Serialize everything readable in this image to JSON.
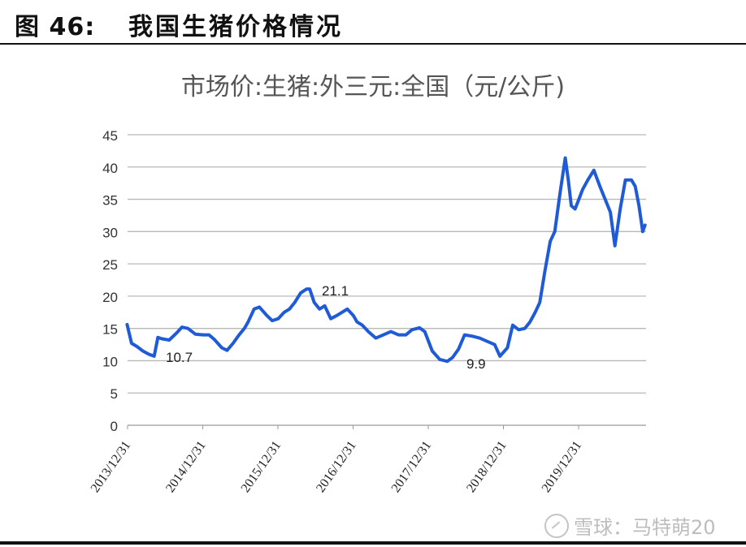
{
  "figure": {
    "label": "图 46:",
    "title": "我国生猪价格情况"
  },
  "watermark": {
    "icon": "xueqiu-logo-icon",
    "text": "雪球：马特萌20"
  },
  "chart_data": {
    "type": "line",
    "title": "市场价:生猪:外三元:全国（元/公斤)",
    "xlabel": "",
    "ylabel": "",
    "ylim": [
      0,
      45
    ],
    "yticks": [
      0,
      5,
      10,
      15,
      20,
      25,
      30,
      35,
      40,
      45
    ],
    "xticks": [
      "2013/12/31",
      "2014/12/31",
      "2015/12/31",
      "2016/12/31",
      "2017/12/31",
      "2018/12/31",
      "2019/12/31"
    ],
    "grid": "horizontal",
    "legend": "none",
    "line_color": "#1f5bd6",
    "annotations": [
      {
        "text": "10.7",
        "x": "2014-04",
        "y": 10.7
      },
      {
        "text": "21.1",
        "x": "2016-05",
        "y": 21.1
      },
      {
        "text": "9.9",
        "x": "2018-05",
        "y": 9.9
      }
    ],
    "series": [
      {
        "name": "市场价:生猪:外三元:全国",
        "x": [
          2013.99,
          2014.05,
          2014.12,
          2014.2,
          2014.28,
          2014.35,
          2014.4,
          2014.45,
          2014.55,
          2014.65,
          2014.72,
          2014.8,
          2014.9,
          2015.0,
          2015.08,
          2015.15,
          2015.25,
          2015.32,
          2015.4,
          2015.48,
          2015.55,
          2015.6,
          2015.68,
          2015.75,
          2015.85,
          2015.92,
          2016.0,
          2016.08,
          2016.15,
          2016.22,
          2016.3,
          2016.38,
          2016.42,
          2016.48,
          2016.55,
          2016.62,
          2016.7,
          2016.78,
          2016.85,
          2016.92,
          2017.0,
          2017.05,
          2017.12,
          2017.2,
          2017.3,
          2017.4,
          2017.5,
          2017.6,
          2017.7,
          2017.78,
          2017.88,
          2017.95,
          2018.05,
          2018.15,
          2018.25,
          2018.32,
          2018.4,
          2018.48,
          2018.58,
          2018.68,
          2018.78,
          2018.88,
          2018.95,
          2019.05,
          2019.12,
          2019.2,
          2019.28,
          2019.35,
          2019.42,
          2019.48,
          2019.55,
          2019.62,
          2019.68,
          2019.75,
          2019.82,
          2019.86,
          2019.9,
          2019.95,
          2020.0,
          2020.05,
          2020.12,
          2020.2,
          2020.28,
          2020.35,
          2020.42,
          2020.48,
          2020.55,
          2020.62,
          2020.7,
          2020.75,
          2020.8,
          2020.85,
          2020.88
        ],
        "values": [
          15.6,
          12.7,
          12.2,
          11.5,
          11.0,
          10.7,
          13.6,
          13.4,
          13.2,
          14.3,
          15.2,
          15.0,
          14.1,
          14.0,
          14.0,
          13.3,
          12.0,
          11.6,
          12.7,
          14.0,
          15.0,
          16.0,
          18.0,
          18.3,
          17.0,
          16.2,
          16.5,
          17.5,
          18.0,
          19.0,
          20.5,
          21.1,
          21.1,
          19.0,
          18.0,
          18.5,
          16.5,
          17.0,
          17.5,
          18.0,
          17.0,
          16.0,
          15.5,
          14.5,
          13.5,
          14.0,
          14.5,
          14.0,
          14.0,
          14.8,
          15.1,
          14.5,
          11.5,
          10.2,
          9.9,
          10.5,
          11.8,
          14.0,
          13.8,
          13.5,
          13.0,
          12.5,
          10.7,
          12.0,
          15.5,
          14.8,
          15.0,
          16.0,
          17.5,
          19.0,
          24.0,
          28.5,
          30.0,
          36.0,
          41.4,
          38.0,
          34.0,
          33.5,
          35.0,
          36.5,
          38.0,
          39.5,
          37.0,
          35.0,
          33.0,
          27.8,
          33.5,
          38.0,
          38.0,
          37.0,
          34.0,
          30.0,
          31.0
        ]
      }
    ]
  }
}
